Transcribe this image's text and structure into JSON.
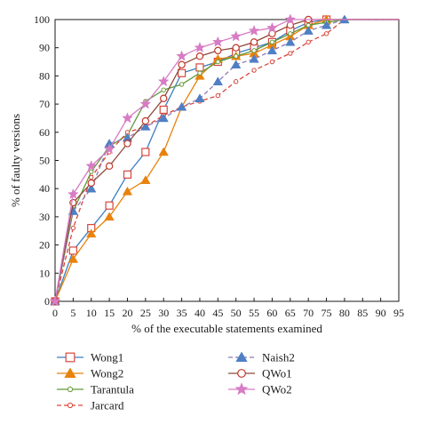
{
  "chart_data": {
    "type": "line",
    "xlabel": "% of the executable statements examined",
    "ylabel": "% of faulty versions",
    "xlim": [
      0,
      95
    ],
    "ylim": [
      0,
      100
    ],
    "x_ticks": [
      0,
      5,
      10,
      15,
      20,
      25,
      30,
      35,
      40,
      45,
      50,
      55,
      60,
      65,
      70,
      75,
      80,
      85,
      90,
      95
    ],
    "y_ticks": [
      0,
      10,
      20,
      30,
      40,
      50,
      60,
      70,
      80,
      90,
      100
    ],
    "grid": false,
    "legend_placement": "bottom",
    "series": [
      {
        "name": "Wong1",
        "color": "#d9463b",
        "marker": "open-square",
        "dash": "solid",
        "line_color": "#3a7fc1",
        "x": [
          0,
          5,
          10,
          15,
          20,
          25,
          30,
          35,
          40,
          45,
          50,
          55,
          60,
          65,
          70,
          75,
          80,
          85,
          90,
          95
        ],
        "y": [
          0,
          18,
          26,
          34,
          45,
          53,
          68,
          81,
          83,
          85,
          88,
          90,
          92,
          96,
          99,
          100,
          100,
          100,
          100,
          100
        ]
      },
      {
        "name": "Wong2",
        "color": "#e8820c",
        "marker": "filled-triangle",
        "dash": "solid",
        "line_color": "#e8820c",
        "x": [
          0,
          5,
          10,
          15,
          20,
          25,
          30,
          35,
          40,
          45,
          50,
          55,
          60,
          65,
          70,
          75,
          80,
          85,
          90,
          95
        ],
        "y": [
          0,
          15,
          24,
          30,
          39,
          43,
          53,
          69,
          80,
          86,
          87,
          88,
          91,
          94,
          98,
          100,
          100,
          100,
          100,
          100
        ]
      },
      {
        "name": "Tarantula",
        "color": "#6a9a3a",
        "marker": "small-open-circle",
        "dash": "solid",
        "line_color": "#5f9a3c",
        "x": [
          0,
          5,
          10,
          15,
          20,
          25,
          30,
          35,
          40,
          45,
          50,
          55,
          60,
          65,
          70,
          75,
          80,
          85,
          90,
          95
        ],
        "y": [
          0,
          32,
          46,
          55,
          59,
          71,
          75,
          77,
          81,
          85,
          87,
          89,
          92,
          95,
          98,
          99,
          100,
          100,
          100,
          100
        ]
      },
      {
        "name": "Jarcard",
        "color": "#d9463b",
        "marker": "small-open-circle",
        "dash": "dashed",
        "line_color": "#d9463b",
        "x": [
          0,
          5,
          10,
          15,
          20,
          25,
          30,
          35,
          40,
          45,
          50,
          55,
          60,
          65,
          70,
          75,
          80,
          85,
          90,
          95
        ],
        "y": [
          0,
          26,
          44,
          53,
          60,
          62,
          66,
          69,
          71,
          73,
          78,
          82,
          85,
          88,
          92,
          95,
          100,
          100,
          100,
          100
        ]
      },
      {
        "name": "Naish2",
        "color": "#4f7fc4",
        "marker": "filled-triangle",
        "dash": "dashed",
        "line_color": "#8e7bb5",
        "x": [
          0,
          5,
          10,
          15,
          20,
          25,
          30,
          35,
          40,
          45,
          50,
          55,
          60,
          65,
          70,
          75,
          80,
          85,
          90,
          95
        ],
        "y": [
          0,
          32,
          40,
          56,
          58,
          62,
          65,
          69,
          72,
          78,
          84,
          86,
          89,
          92,
          96,
          98,
          100,
          100,
          100,
          100
        ]
      },
      {
        "name": "QWo1",
        "color": "#c0392b",
        "marker": "open-circle",
        "dash": "solid",
        "line_color": "#8e4a3a",
        "x": [
          0,
          5,
          10,
          15,
          20,
          25,
          30,
          35,
          40,
          45,
          50,
          55,
          60,
          65,
          70,
          75,
          80,
          85,
          90,
          95
        ],
        "y": [
          0,
          35,
          42,
          48,
          56,
          64,
          72,
          84,
          87,
          89,
          90,
          92,
          95,
          98,
          100,
          100,
          100,
          100,
          100,
          100
        ]
      },
      {
        "name": "QWo2",
        "color": "#d77cc4",
        "marker": "filled-star",
        "dash": "solid",
        "line_color": "#d77cc4",
        "x": [
          0,
          5,
          10,
          15,
          20,
          25,
          30,
          35,
          40,
          45,
          50,
          55,
          60,
          65,
          70,
          75,
          80,
          85,
          90,
          95
        ],
        "y": [
          0,
          38,
          48,
          54,
          65,
          70,
          78,
          87,
          90,
          92,
          94,
          96,
          97,
          100,
          100,
          100,
          100,
          100,
          100,
          100
        ]
      }
    ]
  }
}
